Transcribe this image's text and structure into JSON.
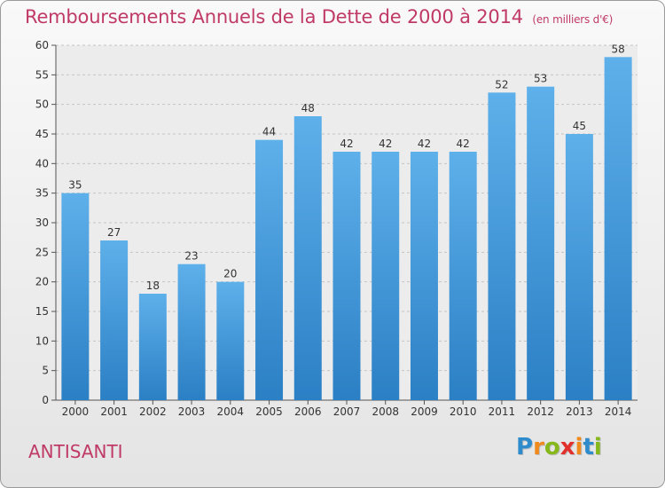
{
  "header": {
    "title": "Remboursements Annuels de la Dette de 2000 à 2014",
    "subtitle": "(en milliers d'€)"
  },
  "footer": {
    "place": "ANTISANTI",
    "logo": {
      "letters": [
        "P",
        "r",
        "o",
        "x",
        "i",
        "t",
        "i"
      ]
    }
  },
  "colors": {
    "title": "#c03a66",
    "bar_light": "#5eb0ea",
    "bar_dark": "#2b7fc4",
    "logo": [
      "#2e8ccc",
      "#f08a1c",
      "#86b81c",
      "#e2312d",
      "#f08a1c",
      "#2e8ccc",
      "#86b81c"
    ]
  },
  "chart_data": {
    "type": "bar",
    "categories": [
      "2000",
      "2001",
      "2002",
      "2003",
      "2004",
      "2005",
      "2006",
      "2007",
      "2008",
      "2009",
      "2010",
      "2011",
      "2012",
      "2013",
      "2014"
    ],
    "values": [
      35,
      27,
      18,
      23,
      20,
      44,
      48,
      42,
      42,
      42,
      42,
      52,
      53,
      45,
      58
    ],
    "ylim": [
      0,
      60
    ],
    "yticks": [
      0,
      5,
      10,
      15,
      20,
      25,
      30,
      35,
      40,
      45,
      50,
      55,
      60
    ],
    "grid": "horizontal-dashed",
    "data_labels": true
  }
}
